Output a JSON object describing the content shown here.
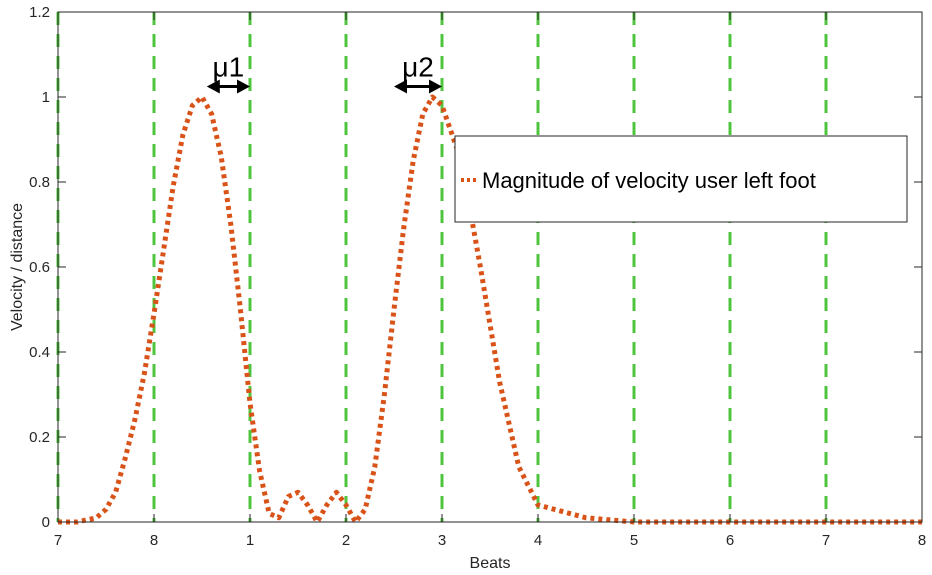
{
  "chart_data": {
    "type": "line",
    "title": "",
    "xlabel": "Beats",
    "ylabel": "Velocity / distance",
    "x_tick_positions": [
      0,
      1,
      2,
      3,
      4,
      5,
      6,
      7,
      8,
      9
    ],
    "x_tick_labels": [
      "7",
      "8",
      "1",
      "2",
      "3",
      "4",
      "5",
      "6",
      "7",
      "8"
    ],
    "xlim": [
      0,
      9
    ],
    "ylim": [
      0,
      1.2
    ],
    "y_ticks": [
      0,
      0.2,
      0.4,
      0.6,
      0.8,
      1,
      1.2
    ],
    "y_tick_labels": [
      "0",
      "0.2",
      "0.4",
      "0.6",
      "0.8",
      "1",
      "1.2"
    ],
    "grid": false,
    "legend_position": "right",
    "beat_lines": {
      "style": "dashed",
      "color": "#4fc43f",
      "x": [
        0,
        1,
        2,
        3,
        4,
        5,
        6,
        7,
        8
      ]
    },
    "series": [
      {
        "name": "Magnitude of velocity user left foot",
        "style": "dotted",
        "color": "#d95319",
        "x": [
          0,
          0.2,
          0.4,
          0.5,
          0.6,
          0.7,
          0.8,
          0.9,
          1.0,
          1.1,
          1.2,
          1.3,
          1.4,
          1.5,
          1.6,
          1.7,
          1.8,
          1.9,
          2.0,
          2.1,
          2.2,
          2.3,
          2.4,
          2.5,
          2.6,
          2.7,
          2.8,
          2.9,
          3.0,
          3.1,
          3.2,
          3.3,
          3.4,
          3.5,
          3.6,
          3.7,
          3.8,
          3.9,
          4.0,
          4.2,
          4.4,
          4.6,
          4.8,
          5.0,
          5.5,
          6.0,
          6.5,
          7.0,
          7.5,
          8.0,
          8.5,
          9.0
        ],
        "values": [
          0.0,
          0.0,
          0.01,
          0.03,
          0.07,
          0.15,
          0.24,
          0.35,
          0.49,
          0.64,
          0.79,
          0.91,
          0.98,
          1.0,
          0.96,
          0.86,
          0.7,
          0.5,
          0.28,
          0.12,
          0.02,
          0.01,
          0.06,
          0.07,
          0.04,
          0.0,
          0.04,
          0.07,
          0.04,
          0.0,
          0.03,
          0.13,
          0.3,
          0.5,
          0.69,
          0.85,
          0.96,
          1.0,
          0.98,
          0.85,
          0.6,
          0.33,
          0.13,
          0.04,
          0.01,
          0.0,
          0.0,
          0.0,
          0.0,
          0.0,
          0.0,
          0.0
        ]
      }
    ],
    "annotations": [
      {
        "text": "μ1",
        "x_from": 1.55,
        "x_to": 2.0,
        "y": 1.02
      },
      {
        "text": "μ2",
        "x_from": 3.5,
        "x_to": 4.0,
        "y": 1.02
      }
    ]
  }
}
